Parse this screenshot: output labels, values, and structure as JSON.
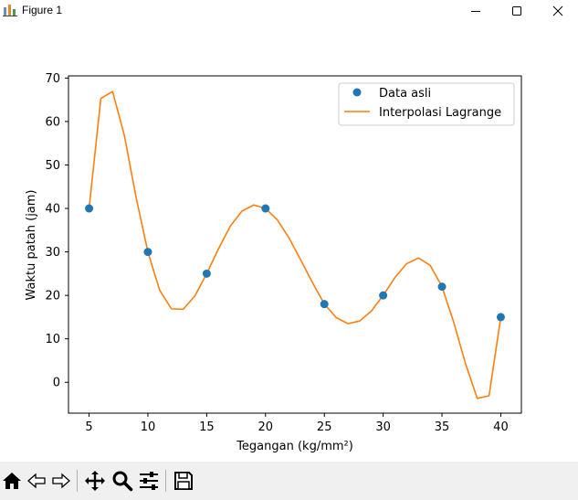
{
  "window": {
    "title": "Figure 1",
    "icon": "matplotlib-figure-icon",
    "controls": [
      "minimize-icon",
      "maximize-icon",
      "close-icon"
    ]
  },
  "toolbar": {
    "tools": [
      "home-icon",
      "back-arrow-icon",
      "forward-arrow-icon",
      "pan-move-icon",
      "zoom-magnifier-icon",
      "configure-subplots-icon",
      "save-floppy-icon"
    ]
  },
  "chart_data": {
    "type": "line",
    "title": "",
    "xlabel": "Tegangan (kg/mm²)",
    "ylabel": "Waktu patah (jam)",
    "xlim": [
      3.25,
      41.75
    ],
    "ylim": [
      -7.1,
      70.5
    ],
    "xticks": [
      5,
      10,
      15,
      20,
      25,
      30,
      35,
      40
    ],
    "yticks": [
      0,
      10,
      20,
      30,
      40,
      50,
      60,
      70
    ],
    "grid": false,
    "legend_position": "top-right",
    "series": [
      {
        "name": "Data asli",
        "kind": "scatter",
        "color": "#1f77b4",
        "x": [
          5,
          10,
          15,
          20,
          25,
          30,
          35,
          40
        ],
        "y": [
          40,
          30,
          25,
          40,
          18,
          20,
          22,
          15
        ]
      },
      {
        "name": "Interpolasi Lagrange",
        "kind": "line",
        "color": "#ff7f0e",
        "x": [
          5,
          6,
          7,
          8,
          9,
          10,
          11,
          12,
          13,
          14,
          15,
          16,
          17,
          18,
          19,
          20,
          21,
          22,
          23,
          24,
          25,
          26,
          27,
          28,
          29,
          30,
          31,
          32,
          33,
          34,
          35,
          36,
          37,
          38,
          39,
          40
        ],
        "y": [
          40,
          65.3,
          66.9,
          56.8,
          42.5,
          30,
          21.2,
          16.9,
          16.8,
          19.9,
          25,
          30.7,
          35.9,
          39.4,
          40.8,
          40,
          37.4,
          33.2,
          28.1,
          22.9,
          18,
          14.9,
          13.5,
          14.1,
          16.4,
          20,
          24.1,
          27.3,
          28.6,
          26.9,
          22,
          13.8,
          4.3,
          -3.7,
          -3.1,
          15
        ]
      }
    ]
  }
}
